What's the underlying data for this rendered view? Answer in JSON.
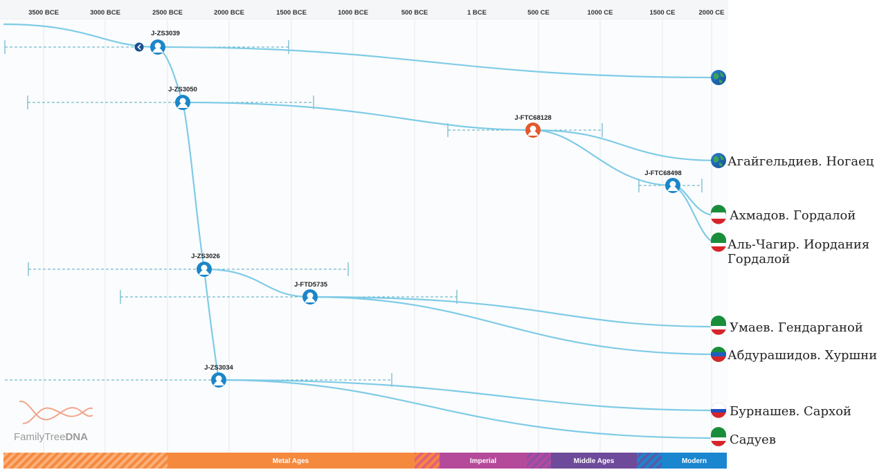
{
  "axis": {
    "ticks": [
      "3500 BCE",
      "3000 BCE",
      "2500 BCE",
      "2000 BCE",
      "1500 BCE",
      "1000 BCE",
      "500 BCE",
      "1 BCE",
      "500 CE",
      "1000 CE",
      "1500 CE",
      "2000 CE"
    ]
  },
  "nodes": [
    {
      "id": "n1",
      "label": "J-ZS3039",
      "type": "ancestor-blue"
    },
    {
      "id": "n2",
      "label": "J-ZS3050",
      "type": "ancestor-blue"
    },
    {
      "id": "n3",
      "label": "J-FTC68128",
      "type": "ancestor-orange"
    },
    {
      "id": "n4",
      "label": "J-FTC68498",
      "type": "ancestor-blue"
    },
    {
      "id": "n5",
      "label": "J-ZS3026",
      "type": "ancestor-blue"
    },
    {
      "id": "n6",
      "label": "J-FTD5735",
      "type": "ancestor-blue"
    },
    {
      "id": "n7",
      "label": "J-ZS3034",
      "type": "ancestor-blue"
    }
  ],
  "leaves": [
    {
      "id": "l0",
      "label": "",
      "flag": "globe"
    },
    {
      "id": "l1",
      "label": "Агайгельдиев. Ногаец",
      "flag": "globe"
    },
    {
      "id": "l2",
      "label": "Ахмадов. Гордалой",
      "flag": "chechnya"
    },
    {
      "id": "l3",
      "label": "Аль-Чагир. Иордания",
      "label2": "Гордалой",
      "flag": "chechnya"
    },
    {
      "id": "l4",
      "label": "Умаев. Гендарганой",
      "flag": "chechnya"
    },
    {
      "id": "l5",
      "label": "Абдурашидов. Хуршни",
      "flag": "dagestan"
    },
    {
      "id": "l6",
      "label": "Бурнашев. Сархой",
      "flag": "russia"
    },
    {
      "id": "l7",
      "label": "Садуев",
      "flag": "chechnya"
    }
  ],
  "eras": [
    {
      "label": "",
      "color": "#f5893e"
    },
    {
      "label": "Metal Ages",
      "color": "#f5893e"
    },
    {
      "label": "",
      "color": "#e0566a"
    },
    {
      "label": "Imperial",
      "color": "#b64a9a"
    },
    {
      "label": "",
      "color": "#8c4aa0"
    },
    {
      "label": "Middle Ages",
      "color": "#6e4a9a"
    },
    {
      "label": "",
      "color": "#3a6ec0"
    },
    {
      "label": "Modern",
      "color": "#1a86cf"
    }
  ],
  "brand": {
    "name_regular": "FamilyTree",
    "name_bold": "DNA",
    "icon": "dna-helix-icon"
  },
  "colors": {
    "branch": "#7ecbe6",
    "node_blue": "#1b86c9",
    "node_orange": "#e4582a",
    "range": "#4aa9bf"
  }
}
